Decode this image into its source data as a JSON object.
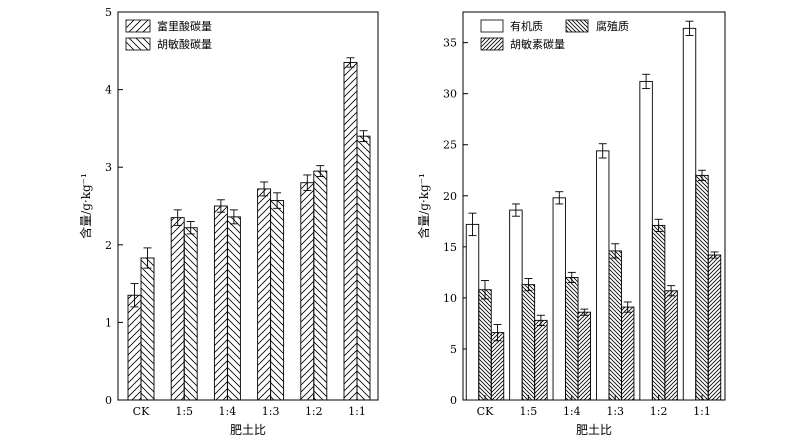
{
  "chart_data": [
    {
      "type": "bar",
      "categories": [
        "CK",
        "1:5",
        "1:4",
        "1:3",
        "1:2",
        "1:1"
      ],
      "xlabel": "肥土比",
      "ylabel": "含量/g·kg⁻¹",
      "ylim": [
        0,
        5
      ],
      "yticks": [
        "0",
        "1",
        "2",
        "3",
        "4",
        "5"
      ],
      "grid": false,
      "legend_position": "top-left",
      "series": [
        {
          "name": "富里酸碳量",
          "pattern": "diagonal-forward",
          "values": [
            1.35,
            2.35,
            2.5,
            2.72,
            2.8,
            4.35
          ],
          "errors": [
            0.15,
            0.1,
            0.08,
            0.09,
            0.1,
            0.06
          ]
        },
        {
          "name": "胡敏酸碳量",
          "pattern": "diagonal-backward",
          "values": [
            1.83,
            2.22,
            2.36,
            2.57,
            2.95,
            3.4
          ],
          "errors": [
            0.13,
            0.08,
            0.09,
            0.1,
            0.07,
            0.07
          ]
        }
      ]
    },
    {
      "type": "bar",
      "categories": [
        "CK",
        "1:5",
        "1:4",
        "1:3",
        "1:2",
        "1:1"
      ],
      "xlabel": "肥土比",
      "ylabel": "含量/g·kg⁻¹",
      "ylim": [
        0,
        38
      ],
      "yticks": [
        "0",
        "5",
        "10",
        "15",
        "20",
        "25",
        "30",
        "35"
      ],
      "grid": false,
      "legend_position": "top-left",
      "series": [
        {
          "name": "有机质",
          "pattern": "empty",
          "values": [
            17.2,
            18.6,
            19.8,
            24.4,
            31.2,
            36.4
          ],
          "errors": [
            1.1,
            0.6,
            0.6,
            0.7,
            0.7,
            0.7
          ]
        },
        {
          "name": "腐殖质",
          "pattern": "diagonal-backward-dense",
          "values": [
            10.8,
            11.3,
            12.0,
            14.6,
            17.1,
            22.0
          ],
          "errors": [
            0.9,
            0.6,
            0.5,
            0.7,
            0.6,
            0.5
          ]
        },
        {
          "name": "胡敏素碳量",
          "pattern": "diagonal-forward-dense",
          "values": [
            6.6,
            7.8,
            8.6,
            9.1,
            10.7,
            14.2
          ],
          "errors": [
            0.8,
            0.5,
            0.3,
            0.5,
            0.5,
            0.3
          ]
        }
      ]
    }
  ]
}
